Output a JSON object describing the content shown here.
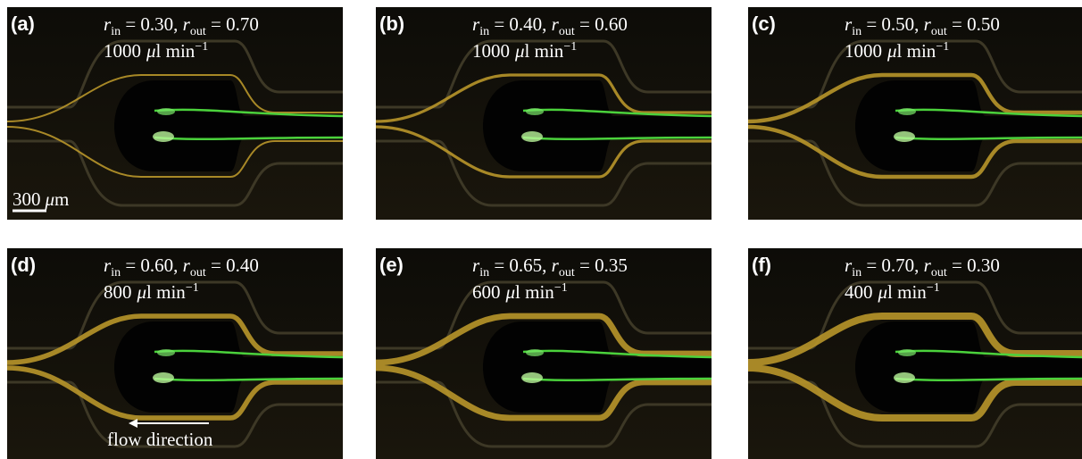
{
  "panels": [
    {
      "label": "(a)",
      "r_in": "0.30",
      "r_out": "0.70",
      "flow": "1000"
    },
    {
      "label": "(b)",
      "r_in": "0.40",
      "r_out": "0.60",
      "flow": "1000"
    },
    {
      "label": "(c)",
      "r_in": "0.50",
      "r_out": "0.50",
      "flow": "1000"
    },
    {
      "label": "(d)",
      "r_in": "0.60",
      "r_out": "0.40",
      "flow": "800"
    },
    {
      "label": "(e)",
      "r_in": "0.65",
      "r_out": "0.35",
      "flow": "600"
    },
    {
      "label": "(f)",
      "r_in": "0.70",
      "r_out": "0.30",
      "flow": "400"
    }
  ],
  "notation": {
    "symbol": "r",
    "sub_in": "in",
    "sub_out": "out",
    "equals": " = ",
    "separator": ", ",
    "mu": "μ",
    "unit": "l min",
    "exponent": "−1"
  },
  "scale_bar": {
    "value": "300",
    "mu": "μ",
    "unit": "m"
  },
  "flow_direction": "flow direction"
}
